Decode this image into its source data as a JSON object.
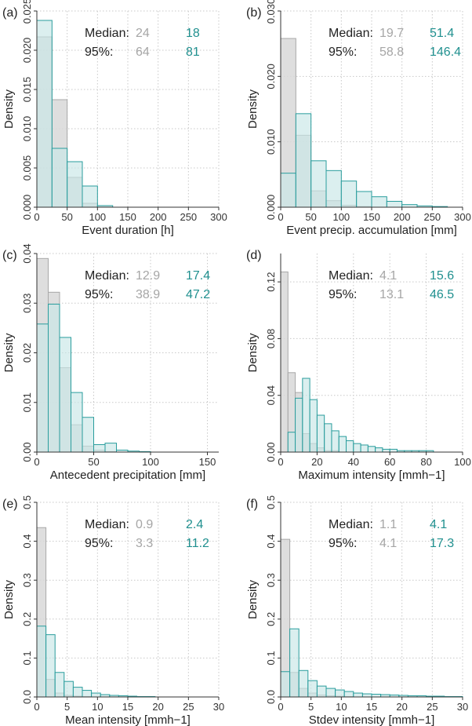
{
  "colors": {
    "gray_fill": "#d8d8d8",
    "gray_edge": "#a8a8a8",
    "teal_fill": "#c7e6e6",
    "teal_edge": "#2a9d9d",
    "teal_text": "#20908f",
    "gray_text": "#a6a6a6",
    "label_text": "#222222"
  },
  "chart_data": [
    {
      "id": "a",
      "panel_label": "(a)",
      "type": "histogram",
      "xlabel": "Event duration [h]",
      "ylabel": "Density",
      "xlim": [
        0,
        300
      ],
      "ylim": [
        0,
        0.025
      ],
      "xticks": [
        0,
        50,
        100,
        150,
        200,
        250,
        300
      ],
      "xtick_labels": [
        "0",
        "50",
        "100",
        "150",
        "200",
        "250",
        "300"
      ],
      "yticks": [
        0,
        0.005,
        0.01,
        0.015,
        0.02,
        0.025
      ],
      "ytick_labels": [
        "0.000",
        "0.005",
        "0.010",
        "0.015",
        "0.020",
        "0.025"
      ],
      "bin_edges": [
        0,
        25,
        50,
        75,
        100,
        125,
        150,
        175,
        200,
        225,
        250,
        275,
        300
      ],
      "series": [
        {
          "name": "gray",
          "values": [
            0.0217,
            0.0137,
            0.0038,
            0.0005,
            0.0002,
            0,
            0,
            0,
            0,
            0,
            0,
            0
          ]
        },
        {
          "name": "teal",
          "values": [
            0.0238,
            0.0075,
            0.0058,
            0.0027,
            0.0002,
            0,
            0,
            0,
            0,
            0,
            0,
            0
          ]
        }
      ],
      "stats": {
        "median_label": "Median:",
        "p95_label": "95%:",
        "median_gray": "24",
        "median_teal": "18",
        "p95_gray": "64",
        "p95_teal": "81"
      }
    },
    {
      "id": "b",
      "panel_label": "(b)",
      "type": "histogram",
      "xlabel": "Event precip. accumulation [mm]",
      "ylabel": "Density",
      "xlim": [
        0,
        300
      ],
      "ylim": [
        0,
        0.03
      ],
      "xticks": [
        0,
        50,
        100,
        150,
        200,
        250,
        300
      ],
      "xtick_labels": [
        "0",
        "50",
        "100",
        "150",
        "200",
        "250",
        "300"
      ],
      "yticks": [
        0,
        0.01,
        0.02,
        0.03
      ],
      "ytick_labels": [
        "0.000",
        "0.010",
        "0.020",
        "0.030"
      ],
      "bin_edges": [
        0,
        25,
        50,
        75,
        100,
        125,
        150,
        175,
        200,
        225,
        250,
        275,
        300
      ],
      "series": [
        {
          "name": "gray",
          "values": [
            0.0258,
            0.011,
            0.0025,
            0.001,
            0.0003,
            0.0001,
            0,
            0,
            0,
            0,
            0,
            0
          ]
        },
        {
          "name": "teal",
          "values": [
            0.0052,
            0.0143,
            0.0071,
            0.0056,
            0.004,
            0.0024,
            0.0016,
            0.0009,
            0.0004,
            0.0002,
            0.0001,
            0
          ]
        }
      ],
      "stats": {
        "median_label": "Median:",
        "p95_label": "95%:",
        "median_gray": "19.7",
        "median_teal": "51.4",
        "p95_gray": "58.8",
        "p95_teal": "146.4"
      }
    },
    {
      "id": "c",
      "panel_label": "(c)",
      "type": "histogram",
      "xlabel": "Antecedent precipitation [mm]",
      "ylabel": "Density",
      "xlim": [
        0,
        160
      ],
      "ylim": [
        0,
        0.04
      ],
      "xticks": [
        0,
        50,
        100,
        150
      ],
      "xtick_labels": [
        "0",
        "50",
        "100",
        "150"
      ],
      "yticks": [
        0,
        0.01,
        0.02,
        0.03,
        0.04
      ],
      "ytick_labels": [
        "0.00",
        "0.01",
        "0.02",
        "0.03",
        "0.04"
      ],
      "bin_edges": [
        0,
        10,
        20,
        30,
        40,
        50,
        60,
        70,
        80,
        90,
        100,
        110,
        120,
        130,
        140,
        150,
        160
      ],
      "series": [
        {
          "name": "gray",
          "values": [
            0.039,
            0.0322,
            0.017,
            0.0055,
            0.0012,
            0.0004,
            0.0001,
            0,
            0,
            0,
            0,
            0,
            0,
            0,
            0,
            0
          ]
        },
        {
          "name": "teal",
          "values": [
            0.0258,
            0.0298,
            0.0231,
            0.012,
            0.007,
            0.0015,
            0.0018,
            0.0004,
            0.0002,
            0.0001,
            0,
            0,
            0,
            0,
            0,
            0
          ]
        }
      ],
      "stats": {
        "median_label": "Median:",
        "p95_label": "95%:",
        "median_gray": "12.9",
        "median_teal": "17.4",
        "p95_gray": "38.9",
        "p95_teal": "47.2"
      }
    },
    {
      "id": "d",
      "panel_label": "(d)",
      "type": "histogram",
      "xlabel": "Maximum intensity [mmh−1]",
      "ylabel": "Density",
      "xlim": [
        0,
        100
      ],
      "ylim": [
        0,
        0.14
      ],
      "xticks": [
        0,
        20,
        40,
        60,
        80,
        100
      ],
      "xtick_labels": [
        "0",
        "20",
        "40",
        "60",
        "80",
        "100"
      ],
      "yticks": [
        0,
        0.04,
        0.08,
        0.12
      ],
      "ytick_labels": [
        "0.00",
        "0.04",
        "0.08",
        "0.12"
      ],
      "bin_edges": [
        0,
        4,
        8,
        12,
        16,
        20,
        24,
        28,
        32,
        36,
        40,
        44,
        48,
        52,
        56,
        60,
        64,
        68,
        72,
        76,
        80,
        84,
        88,
        92,
        96,
        100
      ],
      "series": [
        {
          "name": "gray",
          "values": [
            0.127,
            0.056,
            0.042,
            0.013,
            0.006,
            0.003,
            0.001,
            0.001,
            0,
            0,
            0,
            0,
            0,
            0,
            0,
            0,
            0,
            0,
            0,
            0,
            0,
            0,
            0,
            0,
            0
          ]
        },
        {
          "name": "teal",
          "values": [
            0,
            0.014,
            0.038,
            0.052,
            0.037,
            0.026,
            0.02,
            0.015,
            0.011,
            0.008,
            0.006,
            0.005,
            0.004,
            0.003,
            0.002,
            0.002,
            0.001,
            0.001,
            0.001,
            0.001,
            0.001,
            0,
            0,
            0,
            0
          ]
        }
      ],
      "stats": {
        "median_label": "Median:",
        "p95_label": "95%:",
        "median_gray": "4.1",
        "median_teal": "15.6",
        "p95_gray": "13.1",
        "p95_teal": "46.5"
      }
    },
    {
      "id": "e",
      "panel_label": "(e)",
      "type": "histogram",
      "xlabel": "Mean intensity [mmh−1]",
      "ylabel": "Density",
      "xlim": [
        0,
        30
      ],
      "ylim": [
        0,
        0.5
      ],
      "xticks": [
        0,
        5,
        10,
        15,
        20,
        25,
        30
      ],
      "xtick_labels": [
        "0",
        "5",
        "10",
        "15",
        "20",
        "25",
        "30"
      ],
      "yticks": [
        0,
        0.1,
        0.2,
        0.3,
        0.4,
        0.5
      ],
      "ytick_labels": [
        "0.0",
        "0.1",
        "0.2",
        "0.3",
        "0.4",
        "0.5"
      ],
      "bin_edges": [
        0,
        1.5,
        3,
        4.5,
        6,
        7.5,
        9,
        10.5,
        12,
        13.5,
        15,
        16.5,
        18,
        19.5,
        21,
        22.5,
        24,
        25.5,
        27,
        28.5,
        30
      ],
      "series": [
        {
          "name": "gray",
          "values": [
            0.435,
            0.045,
            0.01,
            0.004,
            0.002,
            0.001,
            0,
            0,
            0,
            0,
            0,
            0,
            0,
            0,
            0,
            0,
            0,
            0,
            0,
            0
          ]
        },
        {
          "name": "teal",
          "values": [
            0.182,
            0.16,
            0.063,
            0.04,
            0.025,
            0.017,
            0.01,
            0.006,
            0.004,
            0.003,
            0.002,
            0.001,
            0.001,
            0,
            0,
            0,
            0,
            0,
            0,
            0
          ]
        }
      ],
      "stats": {
        "median_label": "Median:",
        "p95_label": "95%:",
        "median_gray": "0.9",
        "median_teal": "2.4",
        "p95_gray": "3.3",
        "p95_teal": "11.2"
      }
    },
    {
      "id": "f",
      "panel_label": "(f)",
      "type": "histogram",
      "xlabel": "Stdev intensity [mmh−1]",
      "ylabel": "Density",
      "xlim": [
        0,
        30
      ],
      "ylim": [
        0,
        0.5
      ],
      "xticks": [
        0,
        5,
        10,
        15,
        20,
        25,
        30
      ],
      "xtick_labels": [
        "0",
        "5",
        "10",
        "15",
        "20",
        "25",
        "30"
      ],
      "yticks": [
        0,
        0.1,
        0.2,
        0.3,
        0.4,
        0.5
      ],
      "ytick_labels": [
        "0.0",
        "0.1",
        "0.2",
        "0.3",
        "0.4",
        "0.5"
      ],
      "bin_edges": [
        0,
        1.5,
        3,
        4.5,
        6,
        7.5,
        9,
        10.5,
        12,
        13.5,
        15,
        16.5,
        18,
        19.5,
        21,
        22.5,
        24,
        25.5,
        27,
        28.5,
        30
      ],
      "series": [
        {
          "name": "gray",
          "values": [
            0.405,
            0.063,
            0.022,
            0.01,
            0.005,
            0.003,
            0.002,
            0.001,
            0,
            0,
            0,
            0,
            0,
            0,
            0,
            0,
            0,
            0,
            0,
            0
          ]
        },
        {
          "name": "teal",
          "values": [
            0.065,
            0.175,
            0.068,
            0.042,
            0.028,
            0.022,
            0.018,
            0.014,
            0.01,
            0.008,
            0.007,
            0.006,
            0.005,
            0.004,
            0.003,
            0.003,
            0.002,
            0.002,
            0.001,
            0.001
          ]
        }
      ],
      "stats": {
        "median_label": "Median:",
        "p95_label": "95%:",
        "median_gray": "1.1",
        "median_teal": "4.1",
        "p95_gray": "4.1",
        "p95_teal": "17.3"
      }
    }
  ]
}
